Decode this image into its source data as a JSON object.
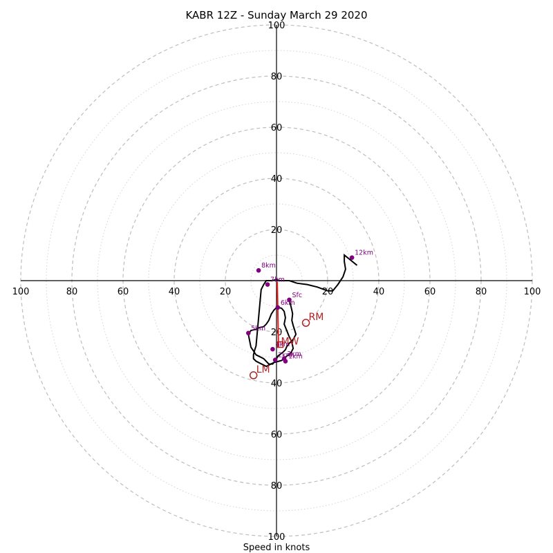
{
  "chart_data": {
    "type": "scatter",
    "title": "KABR 12Z - Sunday March 29 2020",
    "xlabel": "Speed in knots",
    "ylabel": "",
    "xlim": [
      -100,
      100
    ],
    "ylim": [
      -100,
      100
    ],
    "rings_dashed": [
      20,
      40,
      60,
      80,
      100
    ],
    "rings_dotted": [
      10,
      30,
      50,
      70,
      90
    ],
    "x_tick_labels": [
      {
        "value": -100,
        "label": "100"
      },
      {
        "value": -80,
        "label": "80"
      },
      {
        "value": -60,
        "label": "60"
      },
      {
        "value": -40,
        "label": "40"
      },
      {
        "value": -20,
        "label": "20"
      },
      {
        "value": 20,
        "label": "20"
      },
      {
        "value": 40,
        "label": "40"
      },
      {
        "value": 60,
        "label": "60"
      },
      {
        "value": 80,
        "label": "80"
      },
      {
        "value": 100,
        "label": "100"
      }
    ],
    "y_tick_labels": [
      {
        "value": 100,
        "label": "100"
      },
      {
        "value": 80,
        "label": "80"
      },
      {
        "value": 60,
        "label": "60"
      },
      {
        "value": 40,
        "label": "40"
      },
      {
        "value": 20,
        "label": "20"
      },
      {
        "value": -20,
        "label": "20"
      },
      {
        "value": -40,
        "label": "40"
      },
      {
        "value": -60,
        "label": "60"
      },
      {
        "value": -80,
        "label": "80"
      },
      {
        "value": -100,
        "label": "100"
      }
    ],
    "hodograph": {
      "x": [
        5,
        5.5,
        6,
        6.3,
        6,
        6.5,
        7,
        7.6,
        6.5,
        5,
        4,
        3.5,
        2.5,
        0.5,
        -0.2,
        -1,
        -1.5,
        -3,
        -5,
        -8,
        -10,
        -11,
        -10,
        -8,
        -7,
        -6,
        -5,
        -4,
        -3,
        -2,
        -1,
        0,
        1,
        2,
        3,
        3.5,
        3,
        4,
        5,
        6,
        6.5,
        5.5,
        4,
        3,
        2,
        1,
        -1,
        -2,
        -3,
        -4,
        -6,
        -8,
        -9,
        -9,
        -8.5,
        -8,
        -6,
        -5,
        -4,
        -3,
        -2,
        -1,
        0,
        1,
        3,
        5,
        8,
        12,
        16,
        20,
        22,
        24,
        26,
        27,
        26.5,
        26.5,
        29,
        31.5
      ],
      "y": [
        -7.5,
        -9.5,
        -11.5,
        -13,
        -15.5,
        -17.5,
        -19,
        -21,
        -23,
        -24.5,
        -25.8,
        -27,
        -28,
        -29.5,
        -31,
        -32,
        -32.6,
        -32.6,
        -30.5,
        -29,
        -26,
        -21,
        -19.5,
        -19,
        -18.5,
        -18.2,
        -18,
        -17,
        -15.5,
        -13,
        -11.5,
        -10.5,
        -10.5,
        -10.8,
        -12,
        -14.5,
        -17,
        -19.5,
        -22,
        -24,
        -26.5,
        -28.5,
        -29.5,
        -30.5,
        -31.2,
        -31.5,
        -32,
        -32.5,
        -33,
        -33.5,
        -32.5,
        -31.5,
        -30.5,
        -29,
        -27,
        -25.5,
        -3.5,
        -1.5,
        0,
        0,
        0,
        0.2,
        0.5,
        0,
        0,
        0,
        -1,
        -1.5,
        -2.5,
        -4,
        -4,
        -1.5,
        1.5,
        4.5,
        7.5,
        10,
        8,
        6
      ]
    },
    "height_markers": [
      {
        "label": "Sfc",
        "x": 5,
        "y": -7.5
      },
      {
        "label": "1km",
        "x": 3.5,
        "y": -31.5
      },
      {
        "label": "2km",
        "x": -0.5,
        "y": -31
      },
      {
        "label": "3km",
        "x": 3,
        "y": -30.5
      },
      {
        "label": "4km",
        "x": -1.5,
        "y": -26.8
      },
      {
        "label": "5km",
        "x": -11,
        "y": -20.5
      },
      {
        "label": "6km",
        "x": 0.5,
        "y": -10.5
      },
      {
        "label": "7km",
        "x": -3.5,
        "y": -1.5
      },
      {
        "label": "8km",
        "x": -7,
        "y": 4
      },
      {
        "label": "12km",
        "x": 29.5,
        "y": 9
      }
    ],
    "storm_motion": [
      {
        "label": "RM",
        "x": 11.5,
        "y": -16.5
      },
      {
        "label": "LM",
        "x": -9,
        "y": -37
      },
      {
        "label": "MW",
        "x": 1.5,
        "y": -25
      }
    ],
    "shear_vector": {
      "x0": 0.3,
      "y0": -0.5,
      "x1": 0.8,
      "y1": -26
    },
    "colors": {
      "hodograph": "#000000",
      "markers": "#800080",
      "storm": "#b22222",
      "shear": "#e8221e",
      "grid": "#bdbdbd"
    }
  }
}
